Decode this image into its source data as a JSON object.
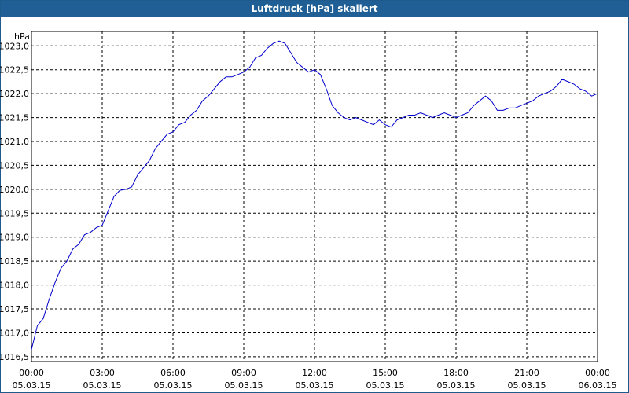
{
  "window": {
    "title": "Luftdruck [hPa] skaliert"
  },
  "chart_data": {
    "type": "line",
    "title": "Luftdruck [hPa] skaliert",
    "ylabel": "hPa",
    "xlabel": "",
    "grid": true,
    "ylim": [
      1016.4,
      1023.3
    ],
    "xlim": [
      0,
      24
    ],
    "x_unit": "hours since 00:00 05.03.15",
    "yticks": [
      "1016,5",
      "1017,0",
      "1017,5",
      "1018,0",
      "1018,5",
      "1019,0",
      "1019,5",
      "1020,0",
      "1020,5",
      "1021,0",
      "1021,5",
      "1022,0",
      "1022,5",
      "1023,0"
    ],
    "yticks_values": [
      1016.5,
      1017.0,
      1017.5,
      1018.0,
      1018.5,
      1019.0,
      1019.5,
      1020.0,
      1020.5,
      1021.0,
      1021.5,
      1022.0,
      1022.5,
      1023.0
    ],
    "xticks": [
      {
        "time": "00:00",
        "date": "05.03.15"
      },
      {
        "time": "03:00",
        "date": "05.03.15"
      },
      {
        "time": "06:00",
        "date": "05.03.15"
      },
      {
        "time": "09:00",
        "date": "05.03.15"
      },
      {
        "time": "12:00",
        "date": "05.03.15"
      },
      {
        "time": "15:00",
        "date": "05.03.15"
      },
      {
        "time": "18:00",
        "date": "05.03.15"
      },
      {
        "time": "21:00",
        "date": "05.03.15"
      },
      {
        "time": "00:00",
        "date": "06.03.15"
      }
    ],
    "xticks_values": [
      0,
      3,
      6,
      9,
      12,
      15,
      18,
      21,
      24
    ],
    "series": [
      {
        "color": "#0000cc",
        "x": [
          0.0,
          0.25,
          0.5,
          0.75,
          1.0,
          1.25,
          1.5,
          1.75,
          2.0,
          2.25,
          2.5,
          2.75,
          3.0,
          3.25,
          3.5,
          3.75,
          4.0,
          4.25,
          4.5,
          4.75,
          5.0,
          5.25,
          5.5,
          5.75,
          6.0,
          6.25,
          6.5,
          6.75,
          7.0,
          7.25,
          7.5,
          7.75,
          8.0,
          8.25,
          8.5,
          8.75,
          9.0,
          9.25,
          9.5,
          9.75,
          10.0,
          10.25,
          10.5,
          10.75,
          11.0,
          11.25,
          11.5,
          11.75,
          12.0,
          12.25,
          12.5,
          12.75,
          13.0,
          13.25,
          13.5,
          13.75,
          14.0,
          14.25,
          14.5,
          14.75,
          15.0,
          15.25,
          15.5,
          15.75,
          16.0,
          16.25,
          16.5,
          16.75,
          17.0,
          17.25,
          17.5,
          17.75,
          18.0,
          18.25,
          18.5,
          18.75,
          19.0,
          19.25,
          19.5,
          19.75,
          20.0,
          20.25,
          20.5,
          20.75,
          21.0,
          21.25,
          21.5,
          21.75,
          22.0,
          22.25,
          22.5,
          22.75,
          23.0,
          23.25,
          23.5,
          23.75,
          24.0
        ],
        "values": [
          1016.65,
          1017.15,
          1017.3,
          1017.7,
          1018.05,
          1018.35,
          1018.5,
          1018.75,
          1018.85,
          1019.05,
          1019.1,
          1019.2,
          1019.25,
          1019.55,
          1019.85,
          1019.98,
          1020.0,
          1020.05,
          1020.3,
          1020.45,
          1020.6,
          1020.85,
          1021.0,
          1021.15,
          1021.2,
          1021.35,
          1021.4,
          1021.55,
          1021.65,
          1021.85,
          1021.95,
          1022.1,
          1022.25,
          1022.35,
          1022.35,
          1022.4,
          1022.45,
          1022.55,
          1022.75,
          1022.8,
          1022.95,
          1023.05,
          1023.1,
          1023.05,
          1022.85,
          1022.65,
          1022.55,
          1022.45,
          1022.5,
          1022.4,
          1022.1,
          1021.75,
          1021.6,
          1021.5,
          1021.45,
          1021.5,
          1021.45,
          1021.4,
          1021.35,
          1021.45,
          1021.35,
          1021.3,
          1021.45,
          1021.5,
          1021.55,
          1021.55,
          1021.6,
          1021.55,
          1021.5,
          1021.55,
          1021.6,
          1021.55,
          1021.5,
          1021.55,
          1021.6,
          1021.75,
          1021.85,
          1021.95,
          1021.85,
          1021.65,
          1021.65,
          1021.7,
          1021.7,
          1021.75,
          1021.8,
          1021.85,
          1021.95,
          1022.0,
          1022.05,
          1022.15,
          1022.3,
          1022.25,
          1022.2,
          1022.1,
          1022.05,
          1021.95,
          1022.0
        ]
      }
    ]
  }
}
